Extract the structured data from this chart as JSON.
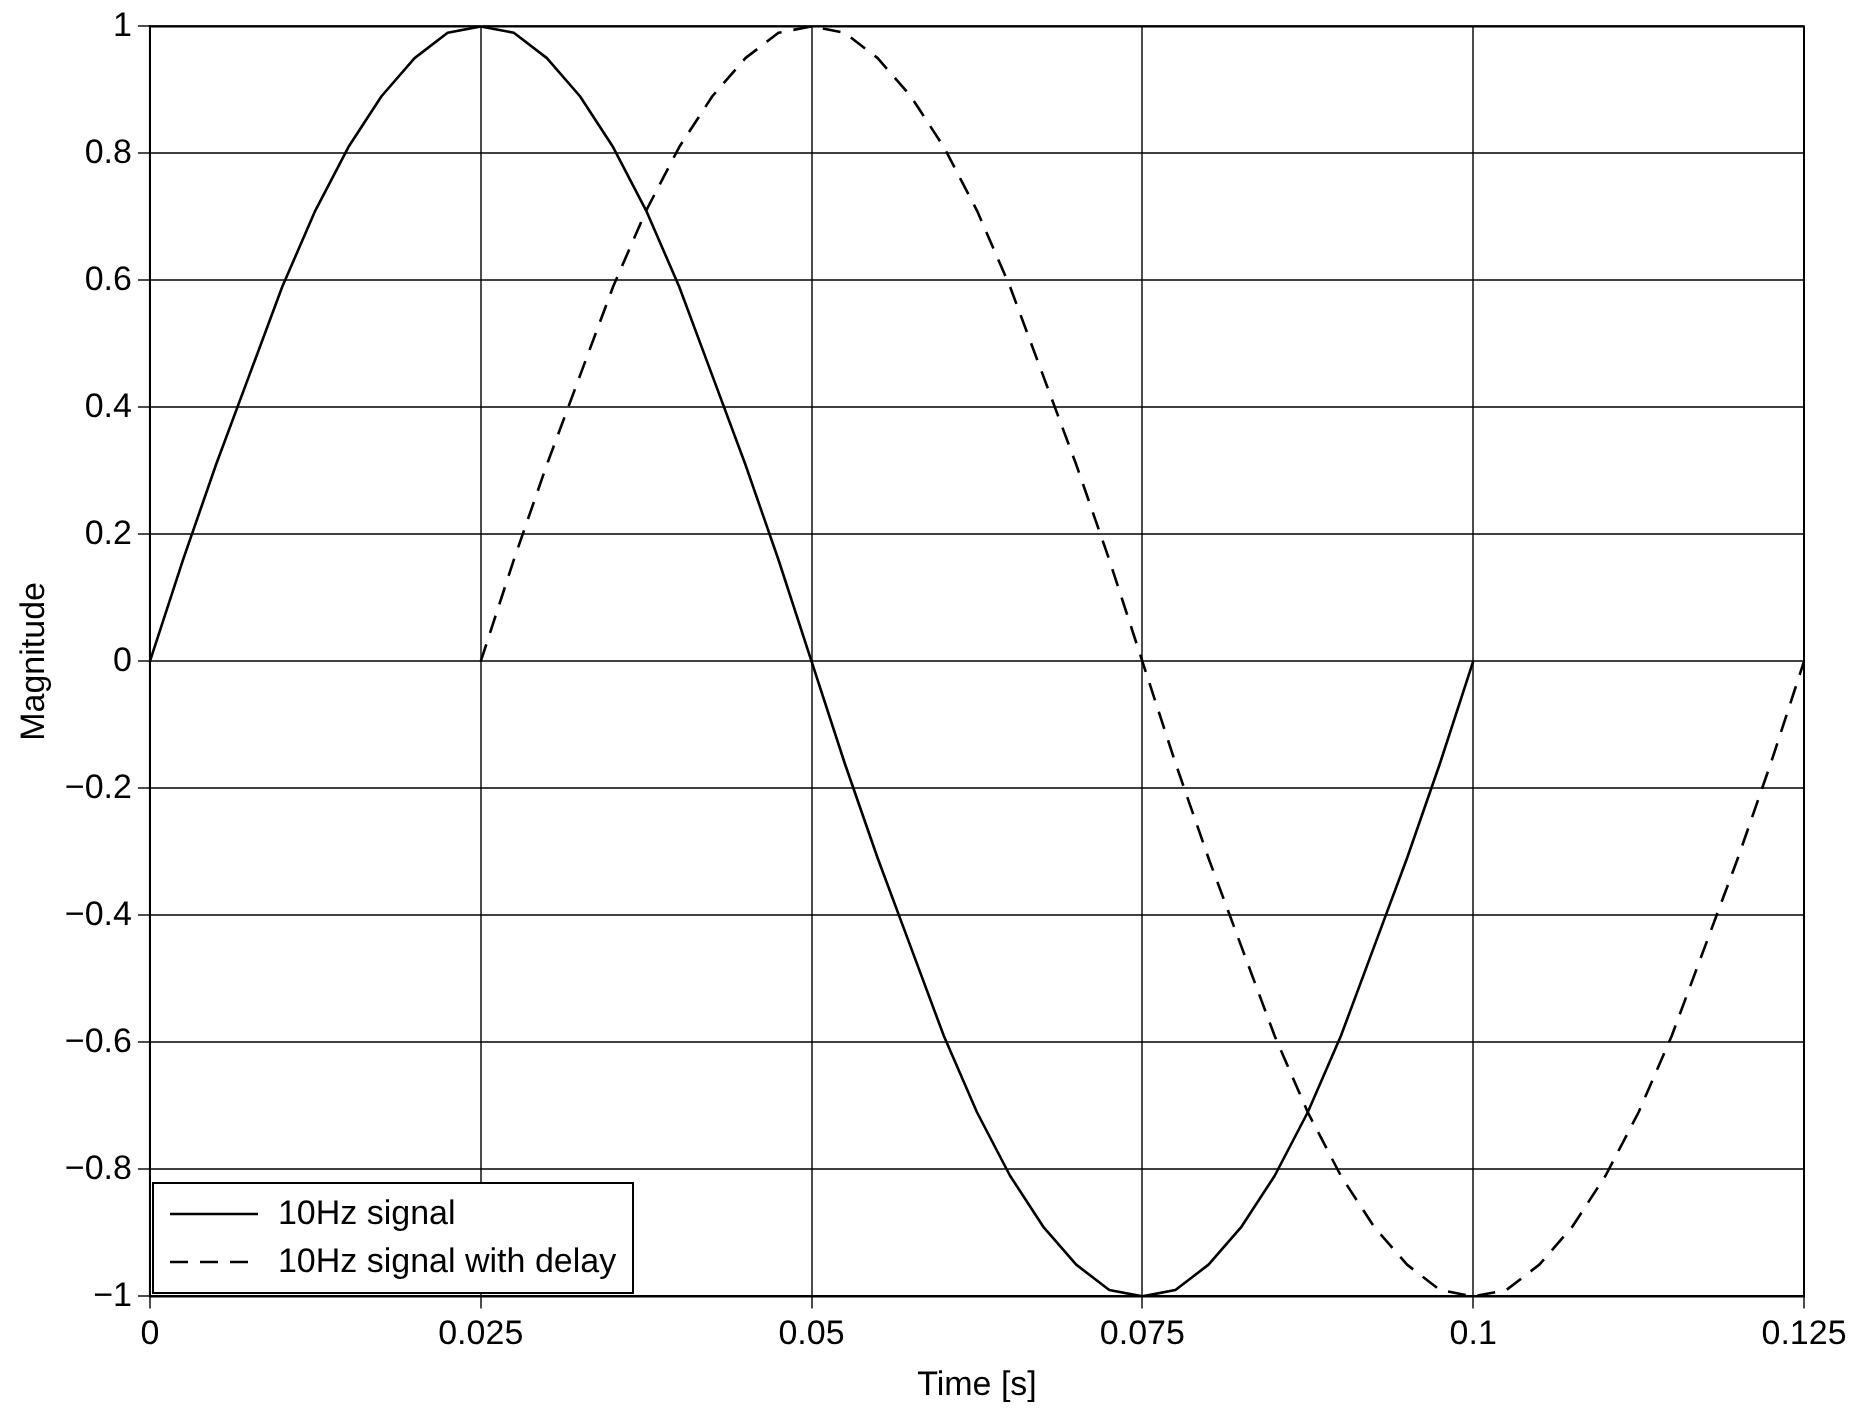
{
  "chart_data": {
    "type": "line",
    "xlabel": "Time [s]",
    "ylabel": "Magnitude",
    "xlim": [
      0,
      0.125
    ],
    "xticks": [
      0,
      0.025,
      0.05,
      0.075,
      0.1,
      0.125
    ],
    "ylim": [
      -1,
      1
    ],
    "yticks": [
      -1,
      -0.8,
      -0.6,
      -0.4,
      -0.2,
      0,
      0.2,
      0.4,
      0.6,
      0.8,
      1
    ],
    "grid": true,
    "legend": "bottom left",
    "marker": "none",
    "series": [
      {
        "name": "10Hz signal",
        "color": "#000000",
        "line_style": "solid",
        "x": [
          0,
          0.0025,
          0.005,
          0.0075,
          0.01,
          0.0125,
          0.015,
          0.0175,
          0.02,
          0.0225,
          0.025,
          0.0275,
          0.03,
          0.0325,
          0.035,
          0.0375,
          0.04,
          0.0425,
          0.045,
          0.0475,
          0.05,
          0.0525,
          0.055,
          0.0575,
          0.06,
          0.0625,
          0.065,
          0.0675,
          0.07,
          0.0725,
          0.075,
          0.0775,
          0.08,
          0.0825,
          0.085,
          0.0875,
          0.09,
          0.0925,
          0.095,
          0.0975,
          0.1
        ],
        "values": [
          0,
          0.16,
          0.31,
          0.45,
          0.59,
          0.71,
          0.81,
          0.89,
          0.95,
          0.99,
          1,
          0.99,
          0.95,
          0.89,
          0.81,
          0.71,
          0.59,
          0.45,
          0.31,
          0.16,
          0,
          -0.16,
          -0.31,
          -0.45,
          -0.59,
          -0.71,
          -0.81,
          -0.89,
          -0.95,
          -0.99,
          -1,
          -0.99,
          -0.95,
          -0.89,
          -0.81,
          -0.71,
          -0.59,
          -0.45,
          -0.31,
          -0.16,
          0
        ]
      },
      {
        "name": "10Hz signal with delay",
        "color": "#000000",
        "line_style": "dashed",
        "x": [
          0.025,
          0.0275,
          0.03,
          0.0325,
          0.035,
          0.0375,
          0.04,
          0.0425,
          0.045,
          0.0475,
          0.05,
          0.0525,
          0.055,
          0.0575,
          0.06,
          0.0625,
          0.065,
          0.0675,
          0.07,
          0.0725,
          0.075,
          0.0775,
          0.08,
          0.0825,
          0.085,
          0.0875,
          0.09,
          0.0925,
          0.095,
          0.0975,
          0.1,
          0.1025,
          0.105,
          0.1075,
          0.11,
          0.1125,
          0.115,
          0.1175,
          0.12,
          0.1225,
          0.125
        ],
        "values": [
          0,
          0.16,
          0.31,
          0.45,
          0.59,
          0.71,
          0.81,
          0.89,
          0.95,
          0.99,
          1,
          0.99,
          0.95,
          0.89,
          0.81,
          0.71,
          0.59,
          0.45,
          0.31,
          0.16,
          0,
          -0.16,
          -0.31,
          -0.45,
          -0.59,
          -0.71,
          -0.81,
          -0.89,
          -0.95,
          -0.99,
          -1,
          -0.99,
          -0.95,
          -0.89,
          -0.81,
          -0.71,
          -0.59,
          -0.45,
          -0.31,
          -0.16,
          0
        ]
      }
    ]
  }
}
